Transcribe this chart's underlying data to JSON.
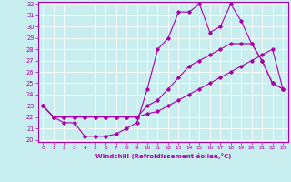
{
  "xlabel": "Windchill (Refroidissement éolien,°C)",
  "xlim": [
    -0.5,
    23.5
  ],
  "ylim": [
    19.8,
    32.2
  ],
  "xticks": [
    0,
    1,
    2,
    3,
    4,
    5,
    6,
    7,
    8,
    9,
    10,
    11,
    12,
    13,
    14,
    15,
    16,
    17,
    18,
    19,
    20,
    21,
    22,
    23
  ],
  "yticks": [
    20,
    21,
    22,
    23,
    24,
    25,
    26,
    27,
    28,
    29,
    30,
    31,
    32
  ],
  "bg_color": "#c8eef0",
  "line_color": "#aa00aa",
  "lines": [
    {
      "x": [
        0,
        1,
        2,
        3,
        4,
        5,
        6,
        7,
        8,
        9,
        10,
        11,
        12,
        13,
        14,
        15,
        16,
        17,
        18,
        19,
        20,
        21,
        22,
        23
      ],
      "y": [
        23,
        22,
        21.5,
        21.5,
        20.3,
        20.3,
        20.3,
        20.5,
        21,
        21.5,
        24.5,
        28,
        29,
        31.3,
        31.3,
        32,
        29.5,
        30,
        32,
        30.5,
        28.5,
        27,
        25,
        24.5
      ]
    },
    {
      "x": [
        0,
        1,
        2,
        3,
        4,
        5,
        6,
        7,
        8,
        9,
        10,
        11,
        12,
        13,
        14,
        15,
        16,
        17,
        18,
        19,
        20,
        21,
        22,
        23
      ],
      "y": [
        23,
        22,
        22,
        22,
        22,
        22,
        22,
        22,
        22,
        22,
        23,
        23.5,
        24.5,
        25.5,
        26.5,
        27,
        27.5,
        28,
        28.5,
        28.5,
        28.5,
        27,
        25,
        24.5
      ]
    },
    {
      "x": [
        0,
        1,
        2,
        3,
        4,
        5,
        6,
        7,
        8,
        9,
        10,
        11,
        12,
        13,
        14,
        15,
        16,
        17,
        18,
        19,
        20,
        21,
        22,
        23
      ],
      "y": [
        23,
        22,
        22,
        22,
        22,
        22,
        22,
        22,
        22,
        22,
        22.3,
        22.5,
        23,
        23.5,
        24,
        24.5,
        25,
        25.5,
        26,
        26.5,
        27,
        27.5,
        28,
        24.5
      ]
    }
  ]
}
